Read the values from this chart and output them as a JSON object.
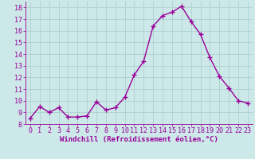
{
  "x": [
    0,
    1,
    2,
    3,
    4,
    5,
    6,
    7,
    8,
    9,
    10,
    11,
    12,
    13,
    14,
    15,
    16,
    17,
    18,
    19,
    20,
    21,
    22,
    23
  ],
  "y": [
    8.5,
    9.5,
    9.0,
    9.4,
    8.6,
    8.6,
    8.7,
    9.9,
    9.2,
    9.4,
    10.3,
    12.2,
    13.4,
    16.4,
    17.3,
    17.6,
    18.1,
    16.8,
    15.7,
    13.7,
    12.1,
    11.1,
    10.0,
    9.8
  ],
  "line_color": "#990099",
  "marker": "+",
  "marker_size": 4,
  "linewidth": 1.0,
  "xlabel": "Windchill (Refroidissement éolien,°C)",
  "ylim": [
    8,
    18.5
  ],
  "xlim": [
    -0.5,
    23.5
  ],
  "yticks": [
    8,
    9,
    10,
    11,
    12,
    13,
    14,
    15,
    16,
    17,
    18
  ],
  "xticks": [
    0,
    1,
    2,
    3,
    4,
    5,
    6,
    7,
    8,
    9,
    10,
    11,
    12,
    13,
    14,
    15,
    16,
    17,
    18,
    19,
    20,
    21,
    22,
    23
  ],
  "background_color": "#cce8e8",
  "grid_color": "#aacccc",
  "font_color": "#990099",
  "xlabel_fontsize": 6.5,
  "tick_fontsize": 6.0
}
